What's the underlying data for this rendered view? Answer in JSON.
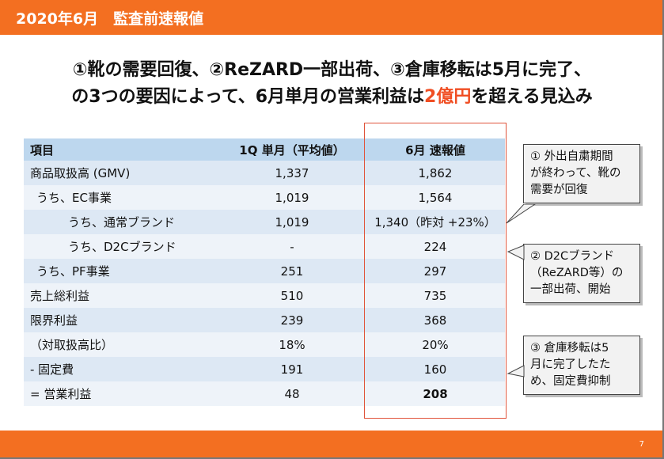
{
  "header": {
    "title": "2020年6月　監査前速報値"
  },
  "headline": {
    "line1": "①靴の需要回復、②ReZARD一部出荷、③倉庫移転は5月に完了、",
    "line2_before": "の3つの要因によって、6月単月の営業利益は",
    "line2_accent": "2億円",
    "line2_after": "を超える見込み",
    "accent_color": "#f04e23"
  },
  "table": {
    "headers": [
      "項目",
      "1Q 単月（平均値）",
      "6月 速報値"
    ],
    "rows": [
      {
        "label": "商品取扱高 (GMV)",
        "q1": "1,337",
        "june": "1,862"
      },
      {
        "label": "うち、EC事業",
        "q1": "1,019",
        "june": "1,564"
      },
      {
        "label": "うち、通常ブランド",
        "q1": "1,019",
        "june": "1,340（昨対 +23%）"
      },
      {
        "label": "うち、D2Cブランド",
        "q1": "-",
        "june": "224"
      },
      {
        "label": "うち、PF事業",
        "q1": "251",
        "june": "297"
      },
      {
        "label": "売上総利益",
        "q1": "510",
        "june": "735"
      },
      {
        "label": "限界利益",
        "q1": "239",
        "june": "368"
      },
      {
        "label": "（対取扱高比）",
        "q1": "18%",
        "june": "20%"
      },
      {
        "label": "-  固定費",
        "q1": "191",
        "june": "160"
      },
      {
        "label": "= 営業利益",
        "q1": "48",
        "june": "208"
      }
    ]
  },
  "callouts": [
    {
      "lines": [
        "① 外出自粛期間",
        "が終わって、靴の",
        "需要が回復"
      ]
    },
    {
      "lines": [
        "② D2Cブランド",
        "（ReZARD等）の",
        "一部出荷、開始"
      ]
    },
    {
      "lines": [
        "③ 倉庫移転は5",
        "月に完了したた",
        "め、固定費抑制"
      ]
    }
  ],
  "footer": {
    "page_number": "7"
  },
  "colors": {
    "brand_orange": "#f36f21",
    "header_blue": "#bdd7ee",
    "highlight_red": "#e0533a"
  }
}
